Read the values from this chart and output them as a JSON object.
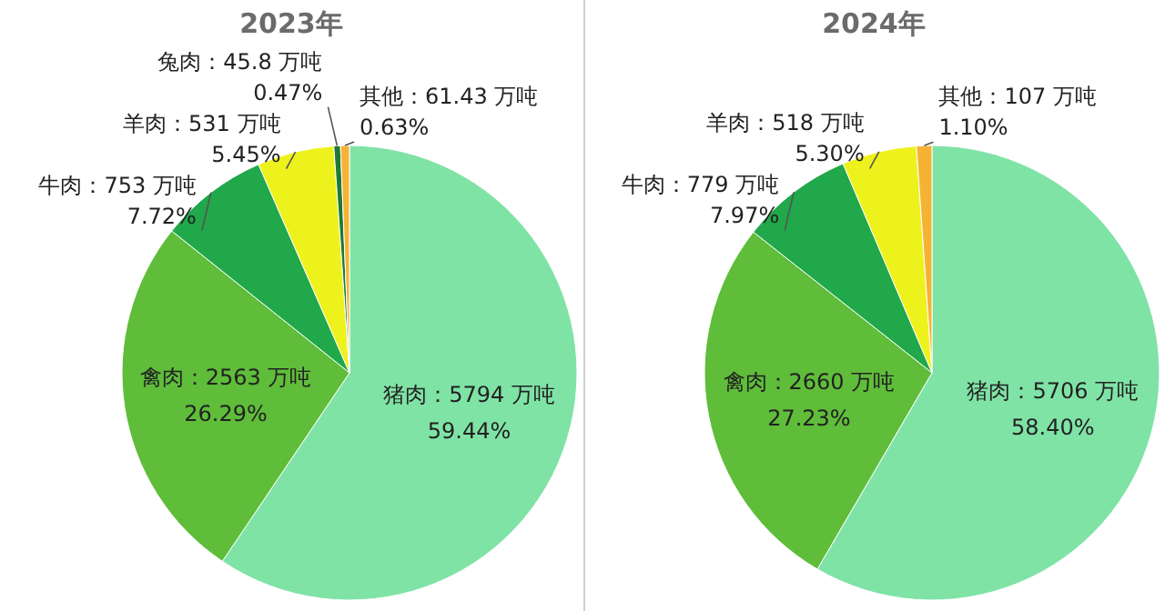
{
  "chart_data": [
    {
      "type": "pie",
      "title": "2023年",
      "categories": [
        "猪肉",
        "禽肉",
        "牛肉",
        "羊肉",
        "兔肉",
        "其他"
      ],
      "values": [
        5794,
        2563,
        753,
        531,
        45.8,
        61.43
      ],
      "colors": [
        "#7fe3a6",
        "#5fbd3a",
        "#20a84a",
        "#eef21c",
        "#1e7b34",
        "#f5b335"
      ],
      "value_labels": [
        "5794 万吨 59.44%",
        "2563 万吨 26.29%",
        "753 万吨 7.72%",
        "531 万吨 5.45%",
        "45.8 万吨 0.47%",
        "61.43 万吨 0.63%"
      ]
    },
    {
      "type": "pie",
      "title": "2024年",
      "categories": [
        "猪肉",
        "禽肉",
        "牛肉",
        "羊肉",
        "其他"
      ],
      "values": [
        5706,
        2660,
        779,
        518,
        107
      ],
      "colors": [
        "#7fe3a6",
        "#5fbd3a",
        "#20a84a",
        "#eef21c",
        "#f5b335"
      ],
      "value_labels": [
        "5706 万吨 58.40%",
        "2660 万吨 27.23%",
        "779 万吨 7.97%",
        "518 万吨 5.30%",
        "107 万吨 1.10%"
      ]
    }
  ]
}
